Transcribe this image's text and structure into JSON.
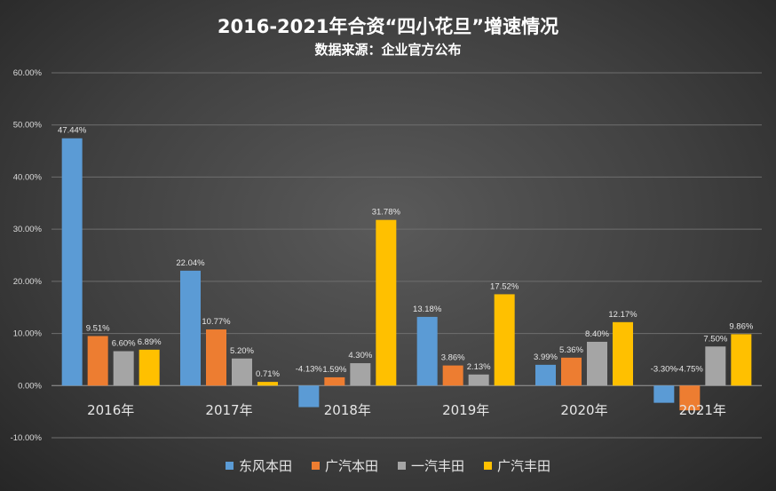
{
  "title": "2016-2021年合资“四小花旦”增速情况",
  "subtitle": "数据来源：企业官方公布",
  "chart_data": {
    "type": "bar",
    "categories": [
      "2016年",
      "2017年",
      "2018年",
      "2019年",
      "2020年",
      "2021年"
    ],
    "series": [
      {
        "name": "东风本田",
        "color": "#5b9bd5",
        "values": [
          47.44,
          22.04,
          -4.13,
          13.18,
          3.99,
          -3.3
        ],
        "labels": [
          "47.44%",
          "22.04%",
          "-4.13%",
          "13.18%",
          "3.99%",
          "-3.30%"
        ]
      },
      {
        "name": "广汽本田",
        "color": "#ed7d31",
        "values": [
          9.51,
          10.77,
          1.59,
          3.86,
          5.36,
          -4.75
        ],
        "labels": [
          "9.51%",
          "10.77%",
          "1.59%",
          "3.86%",
          "5.36%",
          "-4.75%"
        ]
      },
      {
        "name": "一汽丰田",
        "color": "#a5a5a5",
        "values": [
          6.6,
          5.2,
          4.3,
          2.13,
          8.4,
          7.5
        ],
        "labels": [
          "6.60%",
          "5.20%",
          "4.30%",
          "2.13%",
          "8.40%",
          "7.50%"
        ]
      },
      {
        "name": "广汽丰田",
        "color": "#ffc000",
        "values": [
          6.89,
          0.71,
          31.78,
          17.52,
          12.17,
          9.86
        ],
        "labels": [
          "6.89%",
          "0.71%",
          "31.78%",
          "17.52%",
          "12.17%",
          "9.86%"
        ]
      }
    ],
    "ylim": [
      -10,
      60
    ],
    "yticks": [
      -10,
      0,
      10,
      20,
      30,
      40,
      50,
      60
    ],
    "ytick_labels": [
      "-10.00%",
      "0.00%",
      "10.00%",
      "20.00%",
      "30.00%",
      "40.00%",
      "50.00%",
      "60.00%"
    ],
    "grid": true,
    "legend_position": "bottom"
  }
}
